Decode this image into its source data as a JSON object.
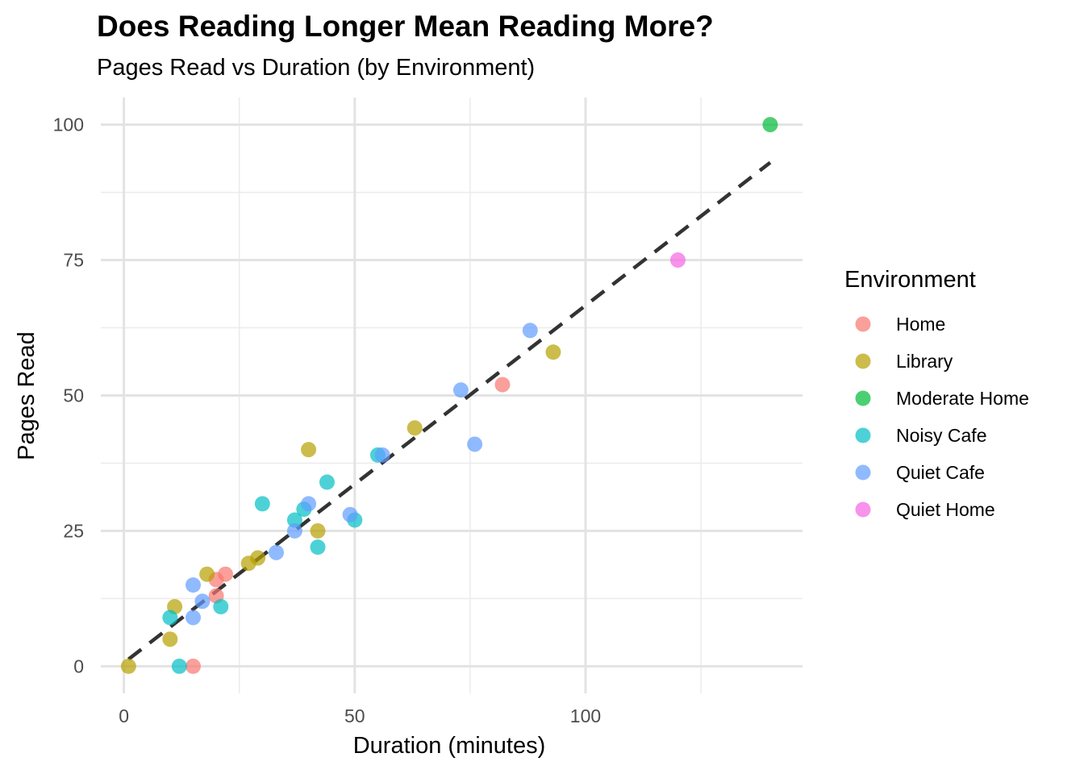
{
  "title": "Does Reading Longer Mean Reading More?",
  "subtitle": "Pages Read vs Duration (by Environment)",
  "chart_data": {
    "type": "scatter",
    "xlabel": "Duration (minutes)",
    "ylabel": "Pages Read",
    "xlim": [
      -5,
      147
    ],
    "ylim": [
      -5,
      105
    ],
    "x_ticks": [
      0,
      50,
      100
    ],
    "y_ticks": [
      0,
      25,
      50,
      75,
      100
    ],
    "grid": true,
    "legend": {
      "title": "Environment",
      "position": "right"
    },
    "series": [
      {
        "name": "Home",
        "color": "#F8766D",
        "points": [
          [
            15,
            0
          ],
          [
            20,
            13
          ],
          [
            20,
            16
          ],
          [
            22,
            17
          ],
          [
            82,
            52
          ]
        ]
      },
      {
        "name": "Library",
        "color": "#B79F00",
        "points": [
          [
            1,
            0
          ],
          [
            10,
            5
          ],
          [
            11,
            11
          ],
          [
            18,
            17
          ],
          [
            27,
            19
          ],
          [
            29,
            20
          ],
          [
            40,
            40
          ],
          [
            42,
            25
          ],
          [
            63,
            44
          ],
          [
            93,
            58
          ]
        ]
      },
      {
        "name": "Moderate Home",
        "color": "#00BA38",
        "points": [
          [
            140,
            100
          ]
        ]
      },
      {
        "name": "Noisy Cafe",
        "color": "#00BFC4",
        "points": [
          [
            10,
            9
          ],
          [
            12,
            0
          ],
          [
            21,
            11
          ],
          [
            30,
            30
          ],
          [
            37,
            27
          ],
          [
            39,
            29
          ],
          [
            42,
            22
          ],
          [
            44,
            34
          ],
          [
            50,
            27
          ],
          [
            55,
            39
          ]
        ]
      },
      {
        "name": "Quiet Cafe",
        "color": "#619CFF",
        "points": [
          [
            15,
            9
          ],
          [
            15,
            15
          ],
          [
            17,
            12
          ],
          [
            33,
            21
          ],
          [
            37,
            25
          ],
          [
            40,
            30
          ],
          [
            49,
            28
          ],
          [
            56,
            39
          ],
          [
            73,
            51
          ],
          [
            76,
            41
          ],
          [
            88,
            62
          ]
        ]
      },
      {
        "name": "Quiet Home",
        "color": "#F564E3",
        "points": [
          [
            120,
            75
          ]
        ]
      }
    ],
    "trend_line": {
      "style": "dashed",
      "color": "#333333",
      "from": [
        1,
        1.3
      ],
      "to": [
        140,
        93
      ]
    }
  }
}
